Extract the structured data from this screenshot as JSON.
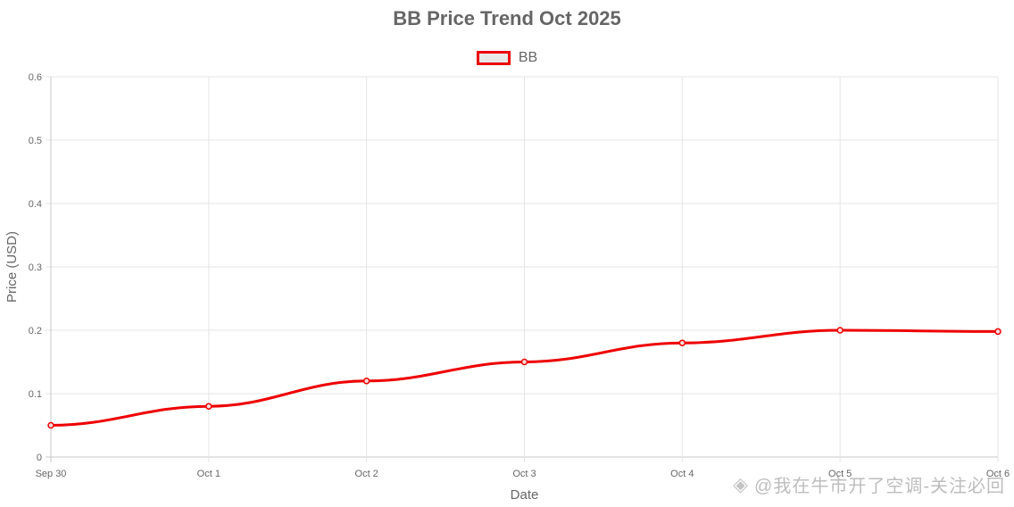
{
  "colors": {
    "line": "#ee0000",
    "grid": "#e5e5e5",
    "axis": "#c8c8c8",
    "text": "#666666",
    "legend_fill": "#e8e8e8"
  },
  "legend_icon": "legend-swatch",
  "watermark": {
    "icon": "diamond-logo-icon",
    "text": "@我在牛市开了空调-关注必回"
  },
  "chart_data": {
    "type": "line",
    "title": "BB Price Trend Oct 2025",
    "xlabel": "Date",
    "ylabel": "Price (USD)",
    "categories": [
      "Sep 30",
      "Oct 1",
      "Oct 2",
      "Oct 3",
      "Oct 4",
      "Oct 5",
      "Oct 6"
    ],
    "series": [
      {
        "name": "BB",
        "values": [
          0.05,
          0.08,
          0.12,
          0.15,
          0.18,
          0.2,
          0.198
        ]
      }
    ],
    "ylim": [
      0,
      0.6
    ],
    "yticks": [
      "0",
      "0.1",
      "0.2",
      "0.3",
      "0.4",
      "0.5",
      "0.6"
    ],
    "grid": true,
    "legend_position": "top-center"
  }
}
